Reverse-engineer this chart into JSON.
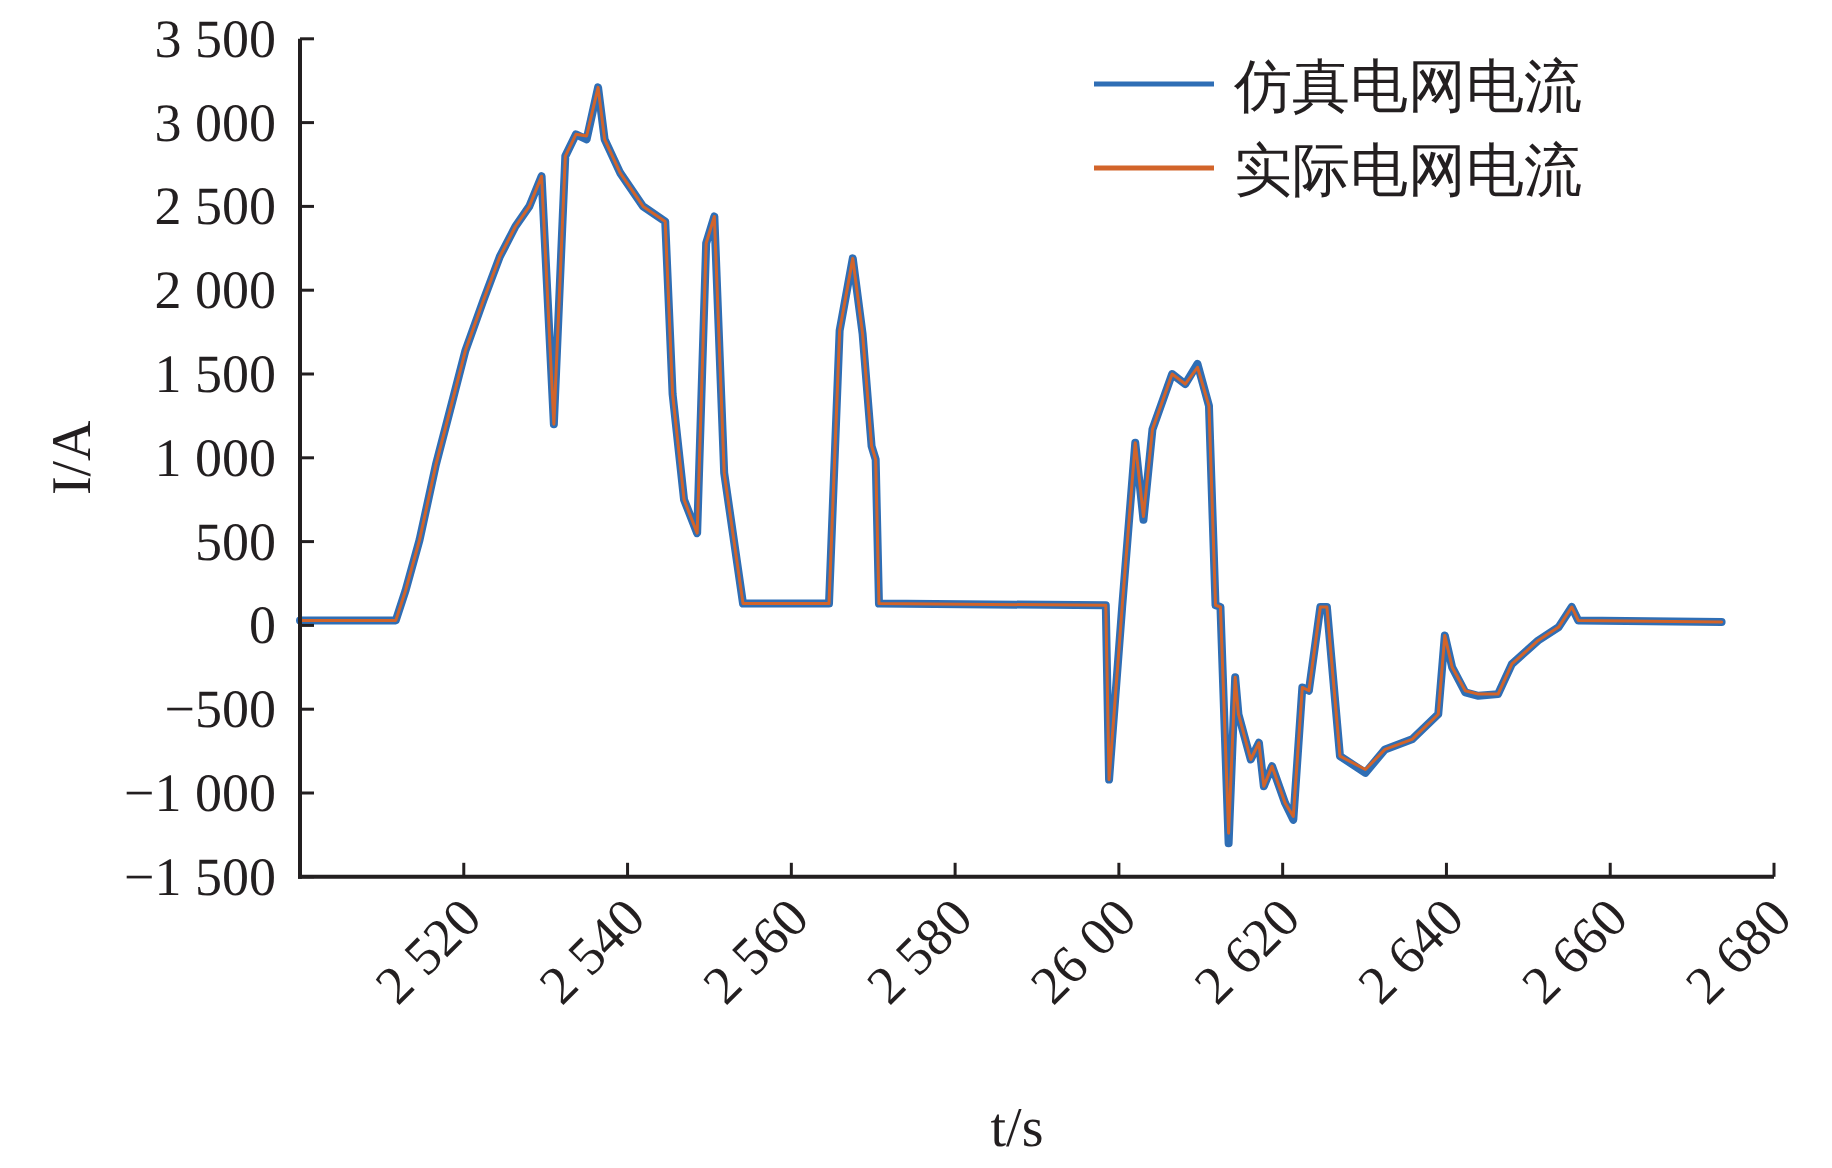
{
  "chart_data": {
    "type": "line",
    "xlabel": "t/s",
    "ylabel": "I/A",
    "legend": "top right",
    "grid": false,
    "marker": "none",
    "line_style": "solid",
    "xlim": [
      2500,
      2680
    ],
    "xticks": [
      {
        "value": 2520,
        "label": "2 520"
      },
      {
        "value": 2540,
        "label": "2 540"
      },
      {
        "value": 2560,
        "label": "2 560"
      },
      {
        "value": 2580,
        "label": "2 580"
      },
      {
        "value": 2600,
        "label": "26 00"
      },
      {
        "value": 2620,
        "label": "2 620"
      },
      {
        "value": 2640,
        "label": "2 640"
      },
      {
        "value": 2660,
        "label": "2 660"
      },
      {
        "value": 2680,
        "label": "2 680"
      }
    ],
    "ylim": [
      -1500,
      3500
    ],
    "yticks": [
      {
        "value": 3500,
        "label": "3 500"
      },
      {
        "value": 3000,
        "label": "3 000"
      },
      {
        "value": 2500,
        "label": "2 500"
      },
      {
        "value": 2000,
        "label": "2 000"
      },
      {
        "value": 1500,
        "label": "1 500"
      },
      {
        "value": 1000,
        "label": "1 000"
      },
      500,
      0,
      {
        "value": -500,
        "label": "−500"
      },
      {
        "value": -1000,
        "label": "−1 000"
      },
      {
        "value": -1500,
        "label": "−1 500"
      }
    ],
    "series": [
      {
        "name": "仿真电网电流",
        "color": "#2f6eb5",
        "x": [
          2500,
          2511.7,
          2512.9,
          2514.6,
          2516.6,
          2518.3,
          2520.2,
          2522.4,
          2524.4,
          2526.3,
          2528,
          2529.5,
          2531,
          2532.4,
          2533.7,
          2535,
          2536.4,
          2537.2,
          2539.1,
          2541.9,
          2544.6,
          2545.5,
          2546.9,
          2548.5,
          2549.6,
          2550.6,
          2551.8,
          2554.1,
          2564.6,
          2565.9,
          2567.5,
          2568.7,
          2569.8,
          2570.3,
          2570.7,
          2598.4,
          2598.8,
          2600.4,
          2602,
          2603,
          2604.1,
          2606.5,
          2608.1,
          2609.6,
          2611,
          2611.8,
          2612.4,
          2613.4,
          2614.2,
          2614.6,
          2616.1,
          2617.1,
          2617.7,
          2618.7,
          2620.3,
          2621.3,
          2622.4,
          2623.2,
          2624.6,
          2625.4,
          2627,
          2630.1,
          2632.5,
          2635.8,
          2639,
          2639.8,
          2640.7,
          2642.3,
          2643.9,
          2646.3,
          2648,
          2651.2,
          2653.7,
          2655.3,
          2656.1,
          2673.6
        ],
        "values": [
          30,
          30,
          210,
          510,
          960,
          1280,
          1640,
          1940,
          2200,
          2380,
          2500,
          2680,
          1200,
          2800,
          2930,
          2900,
          3210,
          2900,
          2700,
          2500,
          2410,
          1380,
          750,
          550,
          2280,
          2440,
          910,
          130,
          130,
          1760,
          2190,
          1740,
          1070,
          990,
          130,
          120,
          -920,
          110,
          1090,
          630,
          1170,
          1500,
          1440,
          1560,
          1310,
          120,
          110,
          -1300,
          -310,
          -530,
          -800,
          -700,
          -960,
          -840,
          -1060,
          -1160,
          -370,
          -390,
          110,
          110,
          -780,
          -880,
          -740,
          -680,
          -530,
          -60,
          -250,
          -400,
          -420,
          -410,
          -230,
          -90,
          -10,
          110,
          30,
          20
        ]
      },
      {
        "name": "实际电网电流",
        "color": "#d2642a",
        "x": [
          2500,
          2511.7,
          2512.9,
          2514.6,
          2516.6,
          2518.3,
          2520.2,
          2522.4,
          2524.4,
          2526.3,
          2528,
          2529.5,
          2531,
          2532.4,
          2533.7,
          2535,
          2536.4,
          2537.2,
          2539.1,
          2541.9,
          2544.6,
          2545.5,
          2546.9,
          2548.5,
          2549.6,
          2550.6,
          2551.8,
          2554.1,
          2564.6,
          2565.9,
          2567.5,
          2568.7,
          2569.8,
          2570.3,
          2570.7,
          2598.4,
          2598.8,
          2600.4,
          2602,
          2603,
          2604.1,
          2606.5,
          2608.1,
          2609.6,
          2611,
          2611.8,
          2612.4,
          2613.4,
          2614.2,
          2614.6,
          2616.1,
          2617.1,
          2617.7,
          2618.7,
          2620.3,
          2621.3,
          2622.4,
          2623.2,
          2624.6,
          2625.4,
          2627,
          2630.1,
          2632.5,
          2635.8,
          2639,
          2639.8,
          2640.7,
          2642.3,
          2643.9,
          2646.3,
          2648,
          2651.2,
          2653.7,
          2655.3,
          2656.1,
          2673.6
        ],
        "values": [
          30,
          30,
          210,
          510,
          960,
          1280,
          1640,
          1940,
          2200,
          2380,
          2500,
          2680,
          1200,
          2800,
          2930,
          2920,
          3210,
          2900,
          2700,
          2500,
          2410,
          1380,
          750,
          550,
          2280,
          2440,
          910,
          130,
          130,
          1760,
          2190,
          1740,
          1070,
          990,
          130,
          120,
          -920,
          110,
          1090,
          650,
          1170,
          1500,
          1440,
          1540,
          1310,
          120,
          110,
          -1240,
          -310,
          -530,
          -800,
          -700,
          -960,
          -840,
          -1060,
          -1140,
          -370,
          -390,
          110,
          110,
          -780,
          -860,
          -740,
          -680,
          -530,
          -60,
          -250,
          -390,
          -410,
          -410,
          -230,
          -90,
          -10,
          110,
          30,
          20
        ]
      }
    ]
  }
}
